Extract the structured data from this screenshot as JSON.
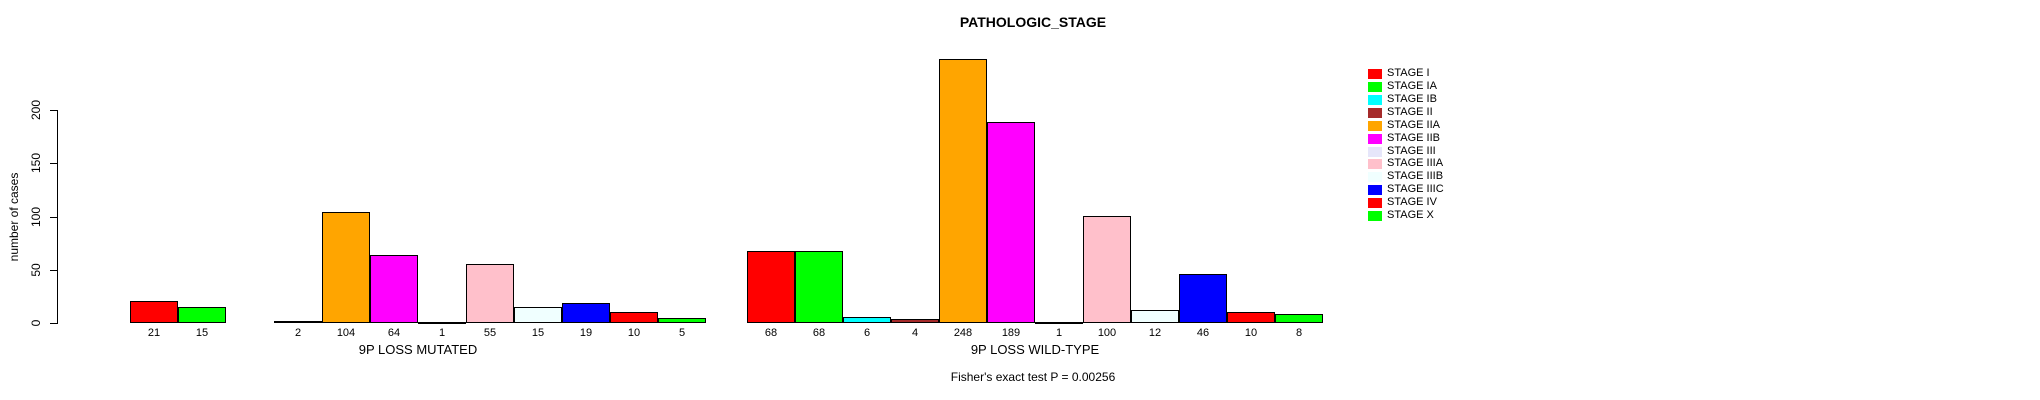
{
  "chart_data": {
    "type": "bar",
    "title": "PATHOLOGIC_STAGE",
    "xlabel": "",
    "ylabel": "number of cases",
    "ylim": [
      0,
      200
    ],
    "yticks": [
      0,
      50,
      100,
      150,
      200
    ],
    "grid": false,
    "legend_position": "right",
    "annotation": "Fisher's exact test P = 0.00256",
    "categories": [
      "STAGE I",
      "STAGE IA",
      "STAGE IB",
      "STAGE II",
      "STAGE IIA",
      "STAGE IIB",
      "STAGE III",
      "STAGE IIIA",
      "STAGE IIIB",
      "STAGE IIIC",
      "STAGE IV",
      "STAGE X"
    ],
    "colors": [
      "#FF0000",
      "#00FF00",
      "#00FFFF",
      "#A52A2A",
      "#FFA500",
      "#FF00FF",
      "#E6E6FA",
      "#FFC0CB",
      "#F0FFFF",
      "#0000FF",
      "#FF0000",
      "#00FF00"
    ],
    "bar_border_color": "#000000",
    "groups": [
      {
        "label": "9P LOSS MUTATED",
        "values": [
          21,
          15,
          0,
          2,
          104,
          64,
          1,
          55,
          15,
          19,
          10,
          5
        ],
        "bar_labels": [
          "21",
          "15",
          "",
          "2",
          "104",
          "64",
          "1",
          "55",
          "15",
          "19",
          "10",
          "5"
        ]
      },
      {
        "label": "9P LOSS WILD-TYPE",
        "values": [
          68,
          68,
          6,
          4,
          248,
          189,
          1,
          100,
          12,
          46,
          10,
          8
        ],
        "bar_labels": [
          "68",
          "68",
          "6",
          "4",
          "248",
          "189",
          "1",
          "100",
          "12",
          "46",
          "10",
          "8"
        ]
      }
    ]
  }
}
